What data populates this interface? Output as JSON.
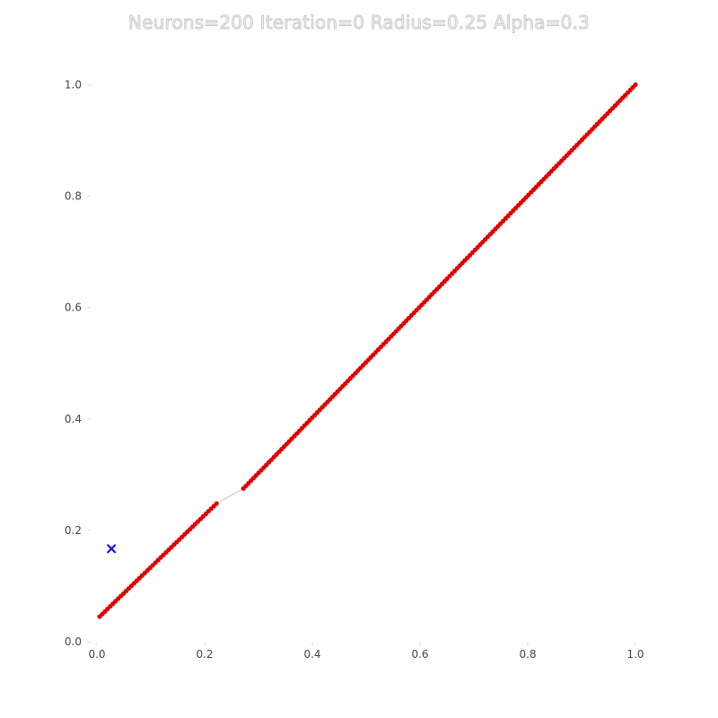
{
  "chart_data": {
    "type": "scatter",
    "title": "Neurons=200 Iteration=0 Radius=0.25 Alpha=0.3",
    "xlim": [
      -0.01,
      1.02
    ],
    "ylim": [
      0.0,
      1.02
    ],
    "x_ticks": [
      "0.0",
      "0.2",
      "0.4",
      "0.6",
      "0.8",
      "1.0"
    ],
    "y_ticks": [
      "0.0",
      "0.2",
      "0.4",
      "0.6",
      "0.8",
      "1.0"
    ],
    "grid": false,
    "neuron_color": "#e00000",
    "line_color": "#cfcfcf",
    "sample_color": "#0000ee",
    "neuron_segments": [
      {
        "x_start": 0.005,
        "y_start": 0.045,
        "x_end": 0.222,
        "y_end": 0.248
      },
      {
        "x_start": 0.272,
        "y_start": 0.275,
        "x_end": 1.0,
        "y_end": 1.0
      }
    ],
    "neuron_count": 200,
    "sample": {
      "x": 0.027,
      "y": 0.167,
      "marker": "x"
    }
  }
}
